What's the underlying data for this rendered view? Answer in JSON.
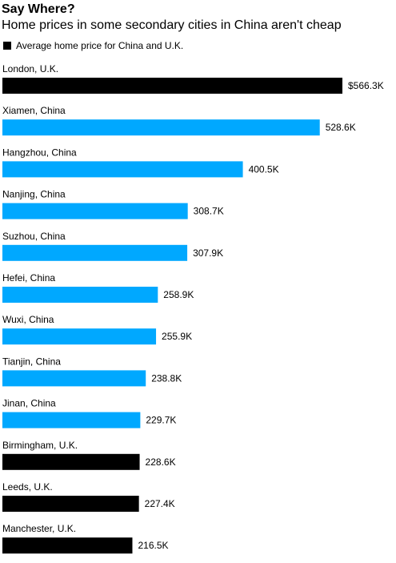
{
  "header": {
    "title": "Say Where?",
    "subtitle": "Home prices in some secondary cities in China aren't cheap"
  },
  "legend": {
    "label": "Average home price for China and U.K.",
    "color": "#000000"
  },
  "colors": {
    "uk": "#000000",
    "china": "#00a8ff"
  },
  "chart_data": {
    "type": "bar",
    "orientation": "horizontal",
    "title": "Say Where?",
    "subtitle": "Home prices in some secondary cities in China aren't cheap",
    "legend": [
      "Average home price for China and U.K."
    ],
    "xlim": [
      0,
      566.3
    ],
    "grid": false,
    "categories": [
      "London, U.K.",
      "Xiamen, China",
      "Hangzhou, China",
      "Nanjing, China",
      "Suzhou, China",
      "Hefei, China",
      "Wuxi, China",
      "Tianjin, China",
      "Jinan, China",
      "Birmingham, U.K.",
      "Leeds, U.K.",
      "Manchester, U.K."
    ],
    "values": [
      566.3,
      528.6,
      400.5,
      308.7,
      307.9,
      258.9,
      255.9,
      238.8,
      229.7,
      228.6,
      227.4,
      216.5
    ],
    "value_labels": [
      "$566.3K",
      "528.6K",
      "400.5K",
      "308.7K",
      "307.9K",
      "258.9K",
      "255.9K",
      "238.8K",
      "229.7K",
      "228.6K",
      "227.4K",
      "216.5K"
    ],
    "country": [
      "uk",
      "china",
      "china",
      "china",
      "china",
      "china",
      "china",
      "china",
      "china",
      "uk",
      "uk",
      "uk"
    ]
  }
}
